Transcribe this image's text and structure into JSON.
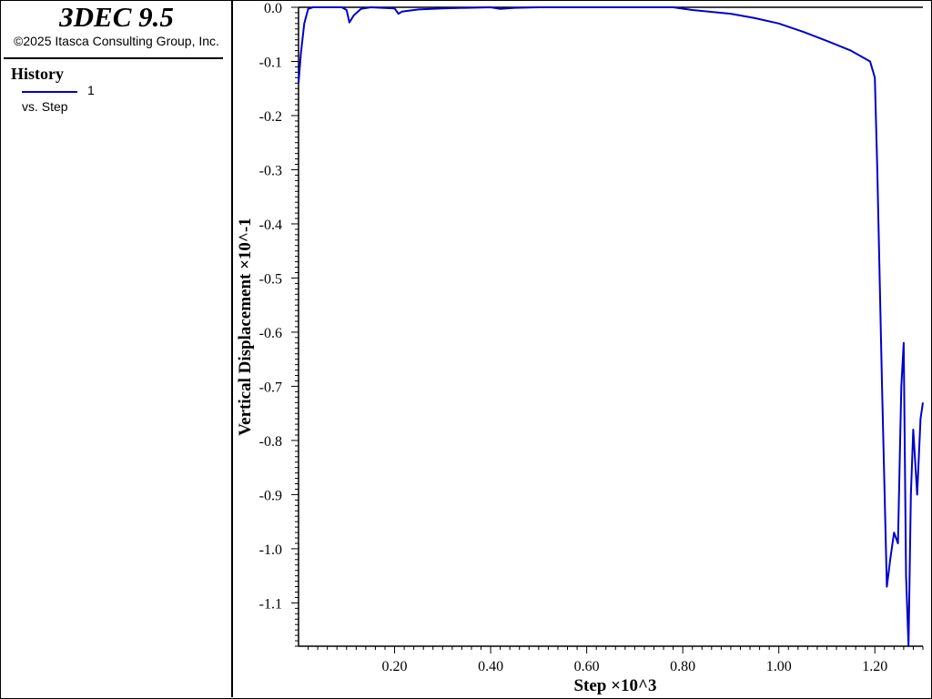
{
  "header": {
    "app_title": "3DEC 9.5",
    "copyright": "©2025 Itasca Consulting Group, Inc."
  },
  "legend": {
    "title": "History",
    "entries": [
      {
        "id": "1",
        "label": "vs. Step",
        "color": "#0000cc"
      }
    ]
  },
  "chart_data": {
    "type": "line",
    "title": "",
    "xlabel": "Step ×10^3",
    "ylabel": "Vertical Displacement ×10^-1",
    "xlim": [
      0,
      1.3
    ],
    "ylim": [
      -1.18,
      0
    ],
    "x_ticks": [
      0.2,
      0.4,
      0.6,
      0.8,
      1.0,
      1.2
    ],
    "x_tick_labels": [
      "0.20",
      "0.40",
      "0.60",
      "0.80",
      "1.00",
      "1.20"
    ],
    "y_ticks": [
      0,
      -0.1,
      -0.2,
      -0.3,
      -0.4,
      -0.5,
      -0.6,
      -0.7,
      -0.8,
      -0.9,
      -1.0,
      -1.1
    ],
    "y_tick_labels": [
      "0.0",
      "-0.1",
      "-0.2",
      "-0.3",
      "-0.4",
      "-0.5",
      "-0.6",
      "-0.7",
      "-0.8",
      "-0.9",
      "-1.0",
      "-1.1"
    ],
    "grid": false,
    "series": [
      {
        "name": "1",
        "color": "#0000cc",
        "x": [
          0.0,
          0.005,
          0.012,
          0.02,
          0.03,
          0.06,
          0.09,
          0.1,
          0.106,
          0.115,
          0.13,
          0.15,
          0.2,
          0.208,
          0.215,
          0.25,
          0.3,
          0.4,
          0.42,
          0.45,
          0.5,
          0.6,
          0.7,
          0.78,
          0.82,
          0.9,
          0.95,
          1.0,
          1.05,
          1.1,
          1.15,
          1.19,
          1.2,
          1.205,
          1.215,
          1.225,
          1.232,
          1.24,
          1.248,
          1.255,
          1.26,
          1.265,
          1.27,
          1.275,
          1.28,
          1.288,
          1.295,
          1.3
        ],
        "y": [
          -0.14,
          -0.085,
          -0.03,
          -0.003,
          0.0,
          0.0,
          0.0,
          -0.005,
          -0.028,
          -0.015,
          -0.003,
          0.0,
          -0.002,
          -0.012,
          -0.008,
          -0.004,
          -0.002,
          0.0,
          -0.003,
          -0.001,
          0.0,
          0.0,
          0.0,
          0.0,
          -0.005,
          -0.012,
          -0.02,
          -0.03,
          -0.045,
          -0.062,
          -0.08,
          -0.1,
          -0.13,
          -0.3,
          -0.7,
          -1.07,
          -1.02,
          -0.97,
          -0.99,
          -0.7,
          -0.62,
          -1.05,
          -1.18,
          -0.9,
          -0.78,
          -0.9,
          -0.76,
          -0.73
        ]
      }
    ]
  }
}
